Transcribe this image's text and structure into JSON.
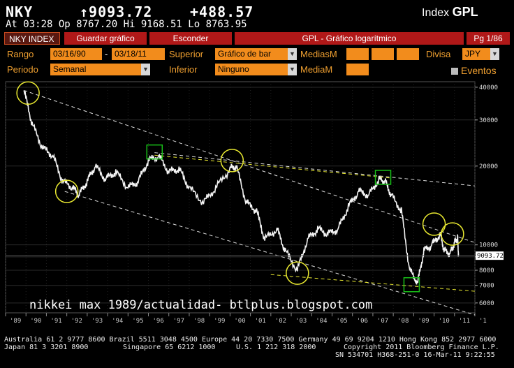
{
  "header": {
    "ticker": "NKY",
    "last_price": "↑9093.72",
    "change": "+488.57",
    "index_label": "Index",
    "index_function": "GPL",
    "quote_line": "At 03:28   Op 8767.20 Hi 9168.51 Lo 8763.95"
  },
  "menu": {
    "index_tab": "NKY INDEX",
    "save_chart": "Guardar gráfico",
    "hide": "Esconder",
    "chart_title": "GPL - Gráfico logarítmico",
    "page": "Pg 1/86"
  },
  "controls": {
    "range_label": "Rango",
    "range_start": "03/16/90",
    "range_sep": "-",
    "range_end": "03/18/11",
    "upper_label": "Superior",
    "upper_value": "Gráfico de bar",
    "moving_avg_label": "MediasM",
    "currency_label": "Divisa",
    "currency_value": "JPY",
    "period_label": "Periodo",
    "period_value": "Semanal",
    "lower_label": "Inferior",
    "lower_value": "Ninguno",
    "avg_label": "MediaM",
    "events_label": "Eventos"
  },
  "colors": {
    "accent_orange": "#f28c1c",
    "menu_red": "#b01818",
    "annotation_yellow": "#e8e830",
    "annotation_green": "#18c018"
  },
  "chart_data": {
    "type": "line",
    "scale": "log",
    "ylim": [
      5500,
      42000
    ],
    "yticks": [
      40000,
      30000,
      20000,
      10000,
      9000,
      8000,
      7000,
      6000
    ],
    "ytick_labels": [
      "40000",
      "30000",
      "20000",
      "10000",
      "",
      "8000",
      "7000",
      "6000"
    ],
    "current_label": "9093.72",
    "xlabels": [
      "'89",
      "'90",
      "'91",
      "'92",
      "'93",
      "'94",
      "'95",
      "'96",
      "'97",
      "'98",
      "'99",
      "'00",
      "'01",
      "'02",
      "'03",
      "'04",
      "'05",
      "'06",
      "'07",
      "'08",
      "'09",
      "'10",
      "'11",
      "'1"
    ],
    "x": [
      1989.9,
      1990.3,
      1990.8,
      1991.3,
      1991.8,
      1992.3,
      1992.6,
      1993.0,
      1993.4,
      1993.9,
      1994.4,
      1995.0,
      1995.5,
      1996.0,
      1996.5,
      1997.0,
      1997.5,
      1998.0,
      1998.7,
      1999.3,
      2000.0,
      2000.3,
      2000.8,
      2001.3,
      2001.7,
      2002.3,
      2002.7,
      2003.3,
      2003.8,
      2004.3,
      2004.8,
      2005.3,
      2005.8,
      2006.3,
      2006.8,
      2007.3,
      2007.6,
      2007.9,
      2008.4,
      2008.8,
      2009.2,
      2009.5,
      2009.9,
      2010.3,
      2010.5,
      2010.8,
      2011.0,
      2011.15,
      2011.2
    ],
    "y": [
      38900,
      29000,
      23500,
      22000,
      17500,
      16500,
      15500,
      17500,
      20000,
      17800,
      19000,
      16500,
      17500,
      21000,
      21800,
      19000,
      19500,
      16500,
      14500,
      16500,
      19500,
      20000,
      14500,
      13500,
      10500,
      11500,
      9500,
      8000,
      10500,
      11500,
      11000,
      11500,
      14000,
      16000,
      15500,
      17800,
      17500,
      15500,
      13500,
      8000,
      7200,
      9500,
      10000,
      11000,
      9500,
      9300,
      10200,
      10700,
      9094
    ],
    "annotations": {
      "wall_text": "nikkei max 1989/actualidad- btlplus.blogspot.com"
    }
  },
  "footer": {
    "line1": "Australia 61 2 9777 8600 Brazil 5511 3048 4500 Europe 44 20 7330 7500 Germany 49 69 9204 1210 Hong Kong 852 2977 6000",
    "line2_left": "Japan 81 3 3201 8900",
    "line2_mid": "Singapore 65 6212 1000",
    "line2_mid2": "U.S. 1 212 318 2000",
    "line2_right": "Copyright 2011 Bloomberg Finance L.P.",
    "line3_right": "SN 534701 H368-251-0 16-Mar-11  9:22:55"
  }
}
